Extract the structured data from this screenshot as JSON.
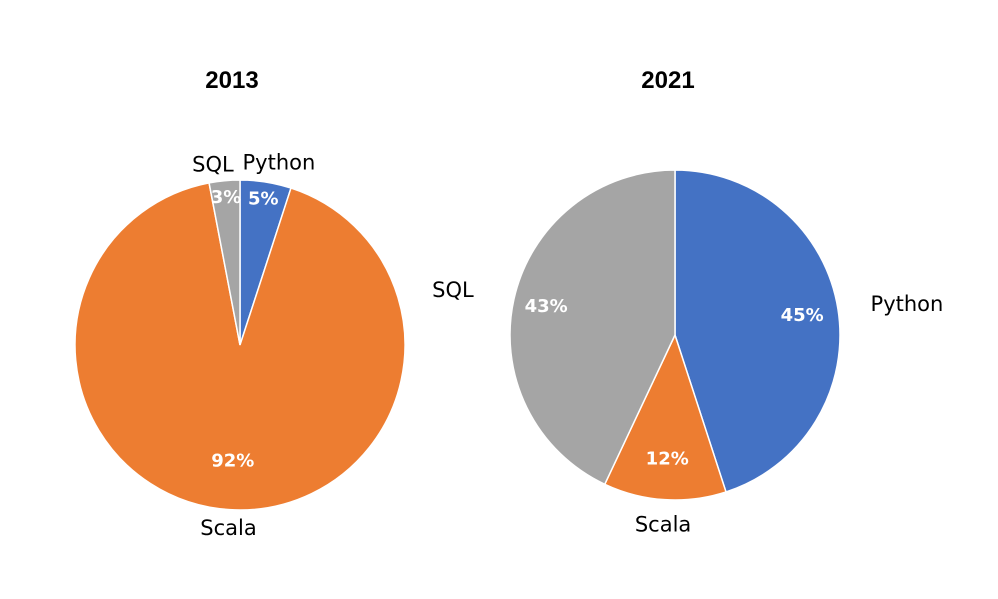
{
  "chart_data": [
    {
      "type": "pie",
      "title": "2013",
      "slices": [
        {
          "label": "Python",
          "value": 5,
          "value_label": "5%",
          "color": "#4472C4"
        },
        {
          "label": "Scala",
          "value": 92,
          "value_label": "92%",
          "color": "#ED7D31"
        },
        {
          "label": "SQL",
          "value": 3,
          "value_label": "3%",
          "color": "#A5A5A5"
        }
      ]
    },
    {
      "type": "pie",
      "title": "2021",
      "slices": [
        {
          "label": "Python",
          "value": 45,
          "value_label": "45%",
          "color": "#4472C4"
        },
        {
          "label": "Scala",
          "value": 12,
          "value_label": "12%",
          "color": "#ED7D31"
        },
        {
          "label": "SQL",
          "value": 43,
          "value_label": "43%",
          "color": "#A5A5A5"
        }
      ]
    }
  ]
}
